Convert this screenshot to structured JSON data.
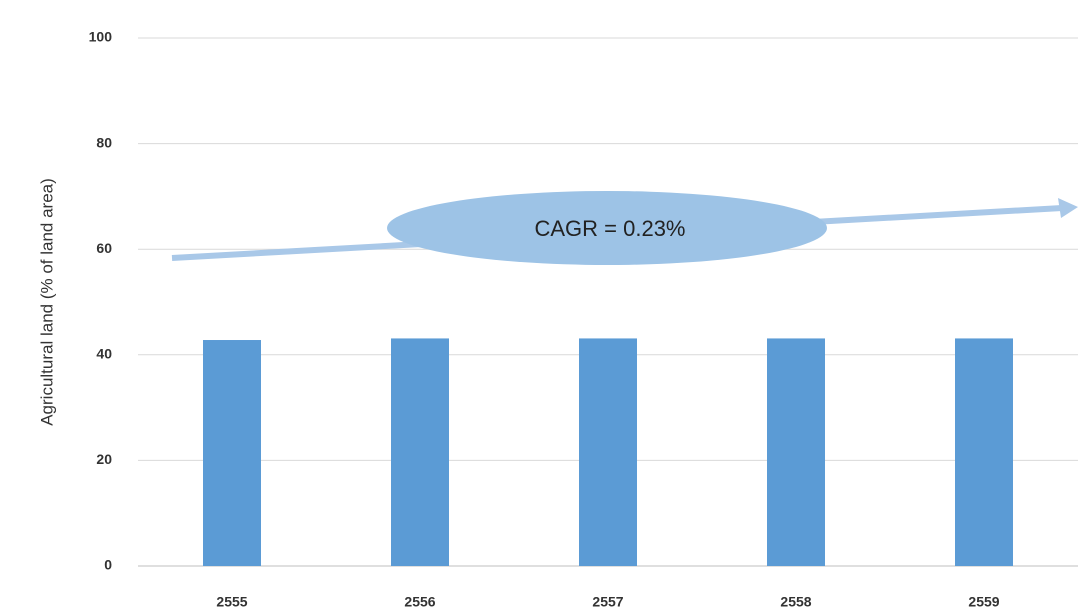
{
  "chart_data": {
    "type": "bar",
    "y_label": "Agricultural land (% of land area)",
    "annotation": "CAGR = 0.23%",
    "categories": [
      "2555",
      "2556",
      "2557",
      "2558",
      "2559"
    ],
    "values": [
      42.8,
      43.1,
      43.1,
      43.1,
      43.1
    ],
    "color": "#5b9bd5",
    "ylim": [
      0,
      100
    ],
    "yticks": [
      0,
      20,
      40,
      60,
      80,
      100
    ],
    "grid": true
  }
}
